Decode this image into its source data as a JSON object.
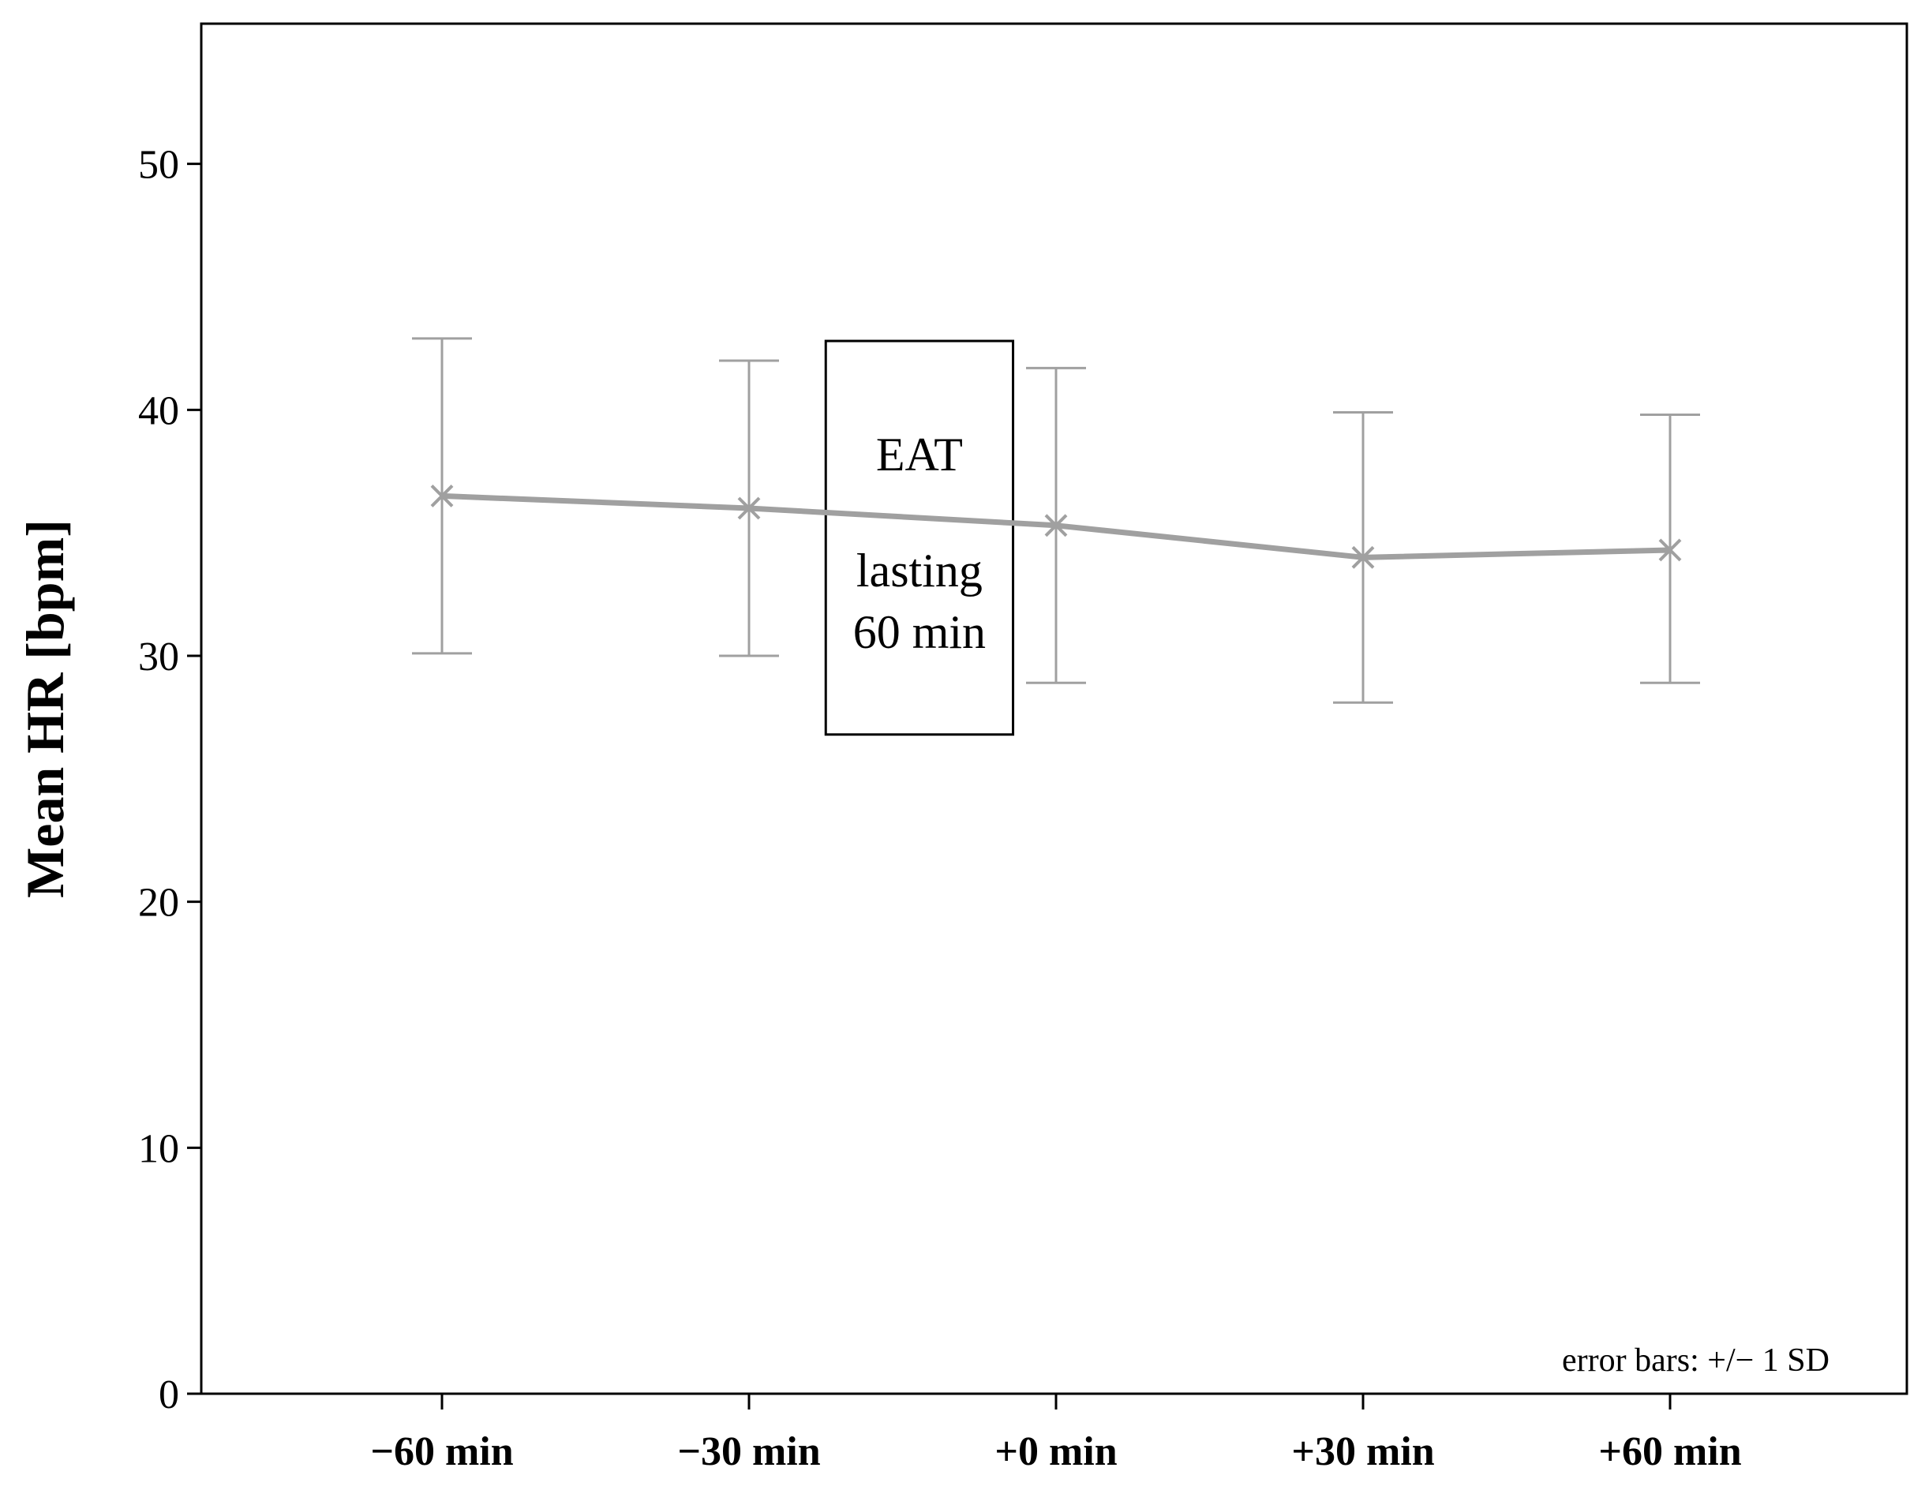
{
  "chart_data": {
    "type": "line",
    "categories": [
      "−60 min",
      "−30 min",
      "+0 min",
      "+30 min",
      "+60 min"
    ],
    "series": [
      {
        "values": [
          36.5,
          36.0,
          35.3,
          34.0,
          34.3
        ],
        "error_low": [
          30.1,
          30.0,
          28.9,
          28.1,
          28.9
        ],
        "error_high": [
          42.9,
          42.0,
          41.7,
          39.9,
          39.8
        ],
        "color": "#a0a0a0"
      }
    ],
    "ylabel": "Mean HR [bpm]",
    "xlabel": "",
    "ylim": [
      0,
      55.7
    ],
    "yticks": [
      0,
      10,
      20,
      30,
      40,
      50
    ],
    "grid": false,
    "annotation": {
      "line1": "EAT",
      "line2": "lasting",
      "line3": "60 min",
      "y_top": 42.8,
      "y_bottom": 26.8
    },
    "note": "error bars: +/− 1 SD"
  }
}
